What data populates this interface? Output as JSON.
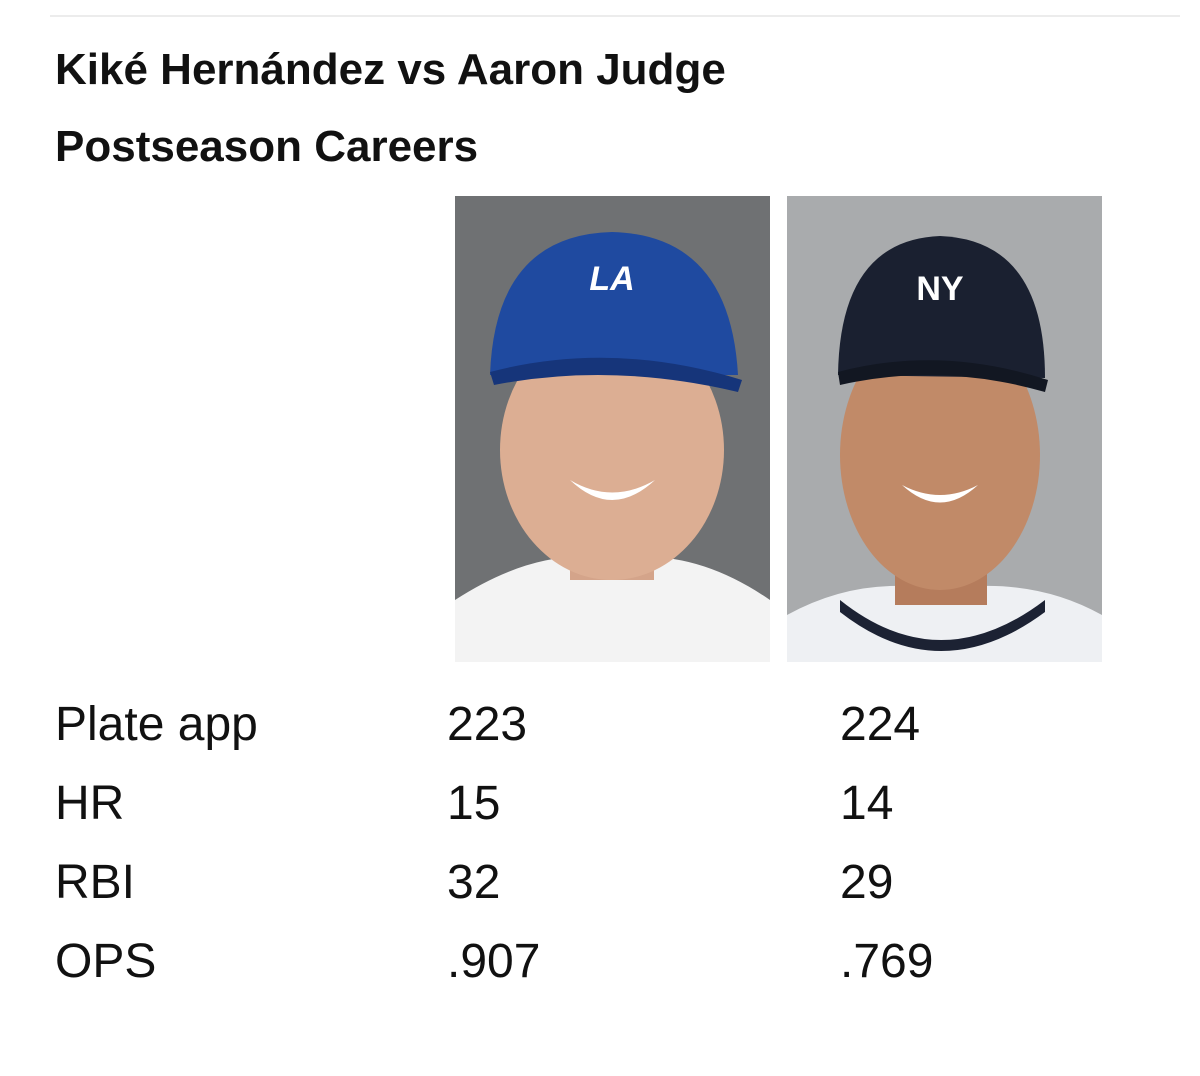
{
  "title": [
    "Kiké Hernández vs Aaron Judge",
    "Postseason Careers"
  ],
  "photos": [
    {
      "logo": "LA"
    },
    {
      "logo": "NY"
    }
  ],
  "table": {
    "rows": [
      [
        "Plate app",
        "223",
        "224"
      ],
      [
        "HR",
        "15",
        "14"
      ],
      [
        "RBI",
        "32",
        "29"
      ],
      [
        "OPS",
        ".907",
        ".769"
      ]
    ]
  }
}
